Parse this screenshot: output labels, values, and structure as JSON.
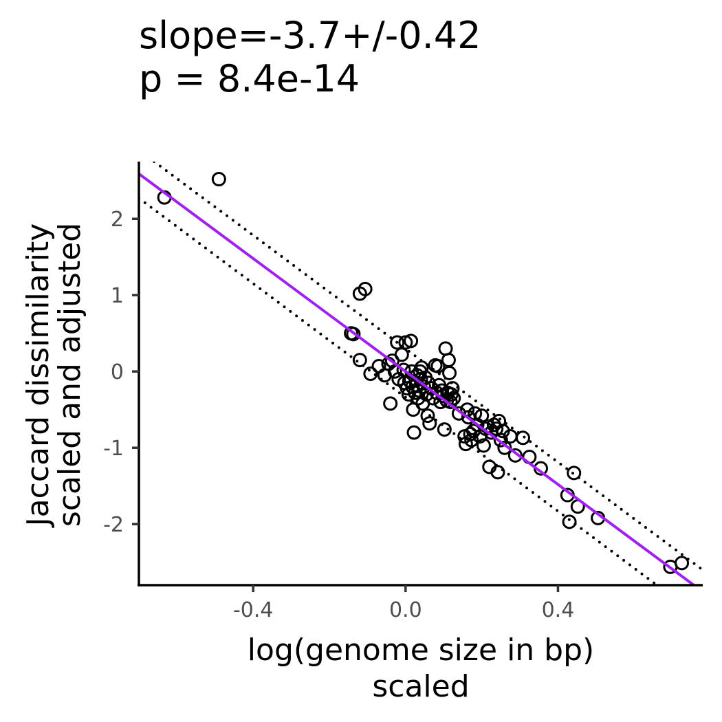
{
  "chart_data": {
    "type": "scatter",
    "title_lines": [
      "slope=-3.7+/-0.42",
      "p = 8.4e-14"
    ],
    "xlabel_lines": [
      "log(genome size in bp)",
      "scaled"
    ],
    "ylabel_lines": [
      "Jaccard dissimilarity",
      "scaled and adjusted"
    ],
    "xlim": [
      -0.7,
      0.78
    ],
    "ylim": [
      -2.8,
      2.75
    ],
    "xticks": [
      -0.4,
      0.0,
      0.4
    ],
    "xtick_labels": [
      "-0.4",
      "0.0",
      "0.4"
    ],
    "yticks": [
      2,
      1,
      0,
      -1,
      -2
    ],
    "ytick_labels": [
      "2",
      "1",
      "0",
      "-1",
      "-2"
    ],
    "grid": false,
    "legend": "none",
    "colors": {
      "fit_line": "#a020f0",
      "points": "#000000",
      "confidence_band": "#000000",
      "axes": "#000000"
    },
    "fit_line": {
      "slope": -3.7,
      "intercept": 0.0
    },
    "confidence_band": {
      "upper": [
        [
          -0.66,
          2.75
        ],
        [
          0.78,
          -2.6
        ]
      ],
      "lower": [
        [
          -0.7,
          2.27
        ],
        [
          0.66,
          -2.8
        ]
      ]
    },
    "points": [
      {
        "x": -0.633,
        "y": 2.28
      },
      {
        "x": -0.49,
        "y": 2.52
      },
      {
        "x": -0.12,
        "y": 1.02
      },
      {
        "x": -0.106,
        "y": 1.08
      },
      {
        "x": -0.143,
        "y": 0.5
      },
      {
        "x": -0.137,
        "y": 0.49
      },
      {
        "x": -0.12,
        "y": 0.15
      },
      {
        "x": -0.092,
        "y": -0.03
      },
      {
        "x": -0.07,
        "y": 0.07
      },
      {
        "x": -0.055,
        "y": -0.05
      },
      {
        "x": -0.045,
        "y": 0.1
      },
      {
        "x": -0.04,
        "y": -0.42
      },
      {
        "x": -0.035,
        "y": 0.14
      },
      {
        "x": -0.028,
        "y": 0.0
      },
      {
        "x": -0.022,
        "y": 0.38
      },
      {
        "x": -0.018,
        "y": -0.1
      },
      {
        "x": -0.01,
        "y": 0.22
      },
      {
        "x": -0.005,
        "y": 0.02
      },
      {
        "x": -0.003,
        "y": -0.15
      },
      {
        "x": 0.0,
        "y": 0.38
      },
      {
        "x": 0.004,
        "y": -0.22
      },
      {
        "x": 0.008,
        "y": -0.3
      },
      {
        "x": 0.01,
        "y": -0.12
      },
      {
        "x": 0.014,
        "y": 0.4
      },
      {
        "x": 0.016,
        "y": 0.0
      },
      {
        "x": 0.018,
        "y": -0.2
      },
      {
        "x": 0.02,
        "y": -0.5
      },
      {
        "x": 0.022,
        "y": -0.8
      },
      {
        "x": 0.025,
        "y": -0.28
      },
      {
        "x": 0.028,
        "y": -0.18
      },
      {
        "x": 0.03,
        "y": -0.05
      },
      {
        "x": 0.033,
        "y": -0.35
      },
      {
        "x": 0.036,
        "y": -0.25
      },
      {
        "x": 0.038,
        "y": 0.0
      },
      {
        "x": 0.04,
        "y": -0.1
      },
      {
        "x": 0.042,
        "y": 0.05
      },
      {
        "x": 0.045,
        "y": -0.42
      },
      {
        "x": 0.048,
        "y": -0.2
      },
      {
        "x": 0.052,
        "y": -0.08
      },
      {
        "x": 0.055,
        "y": -0.3
      },
      {
        "x": 0.058,
        "y": -0.58
      },
      {
        "x": 0.06,
        "y": -0.15
      },
      {
        "x": 0.063,
        "y": -0.68
      },
      {
        "x": 0.068,
        "y": -0.22
      },
      {
        "x": 0.072,
        "y": -0.35
      },
      {
        "x": 0.078,
        "y": 0.08
      },
      {
        "x": 0.082,
        "y": -0.28
      },
      {
        "x": 0.085,
        "y": 0.07
      },
      {
        "x": 0.088,
        "y": -0.18
      },
      {
        "x": 0.092,
        "y": -0.4
      },
      {
        "x": 0.095,
        "y": -0.25
      },
      {
        "x": 0.098,
        "y": -0.32
      },
      {
        "x": 0.102,
        "y": -0.76
      },
      {
        "x": 0.105,
        "y": 0.3
      },
      {
        "x": 0.108,
        "y": -0.38
      },
      {
        "x": 0.11,
        "y": -0.28
      },
      {
        "x": 0.113,
        "y": 0.15
      },
      {
        "x": 0.115,
        "y": -0.02
      },
      {
        "x": 0.118,
        "y": -0.4
      },
      {
        "x": 0.12,
        "y": -0.3
      },
      {
        "x": 0.123,
        "y": -0.22
      },
      {
        "x": 0.126,
        "y": -0.35
      },
      {
        "x": 0.14,
        "y": -0.55
      },
      {
        "x": 0.155,
        "y": -0.85
      },
      {
        "x": 0.158,
        "y": -0.95
      },
      {
        "x": 0.162,
        "y": -0.5
      },
      {
        "x": 0.165,
        "y": -0.6
      },
      {
        "x": 0.17,
        "y": -0.82
      },
      {
        "x": 0.173,
        "y": -0.9
      },
      {
        "x": 0.178,
        "y": -0.78
      },
      {
        "x": 0.182,
        "y": -0.55
      },
      {
        "x": 0.188,
        "y": -0.7
      },
      {
        "x": 0.195,
        "y": -0.85
      },
      {
        "x": 0.2,
        "y": -0.58
      },
      {
        "x": 0.205,
        "y": -0.97
      },
      {
        "x": 0.21,
        "y": -0.75
      },
      {
        "x": 0.215,
        "y": -0.72
      },
      {
        "x": 0.22,
        "y": -1.25
      },
      {
        "x": 0.225,
        "y": -0.8
      },
      {
        "x": 0.232,
        "y": -0.7
      },
      {
        "x": 0.238,
        "y": -0.75
      },
      {
        "x": 0.242,
        "y": -1.32
      },
      {
        "x": 0.245,
        "y": -0.65
      },
      {
        "x": 0.25,
        "y": -0.9
      },
      {
        "x": 0.255,
        "y": -0.78
      },
      {
        "x": 0.26,
        "y": -1.0
      },
      {
        "x": 0.275,
        "y": -0.85
      },
      {
        "x": 0.288,
        "y": -1.1
      },
      {
        "x": 0.308,
        "y": -0.87
      },
      {
        "x": 0.325,
        "y": -1.12
      },
      {
        "x": 0.355,
        "y": -1.27
      },
      {
        "x": 0.425,
        "y": -1.62
      },
      {
        "x": 0.43,
        "y": -1.97
      },
      {
        "x": 0.442,
        "y": -1.33
      },
      {
        "x": 0.452,
        "y": -1.77
      },
      {
        "x": 0.505,
        "y": -1.92
      },
      {
        "x": 0.695,
        "y": -2.56
      },
      {
        "x": 0.725,
        "y": -2.51
      }
    ]
  }
}
